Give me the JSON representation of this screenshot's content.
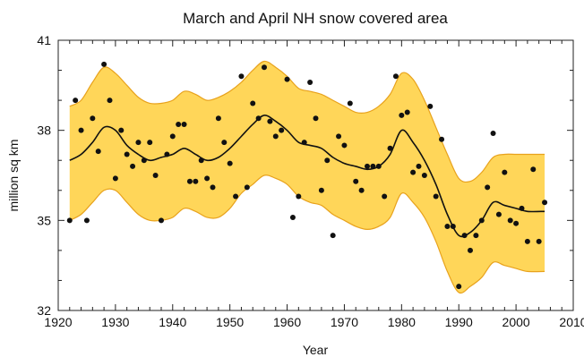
{
  "chart_data": {
    "type": "line",
    "title": "March and April NH snow covered area",
    "xlabel": "Year",
    "ylabel": "million sq km",
    "xlim": [
      1920,
      2010
    ],
    "ylim": [
      32,
      41
    ],
    "xticks": [
      1920,
      1930,
      1940,
      1950,
      1960,
      1970,
      1980,
      1990,
      2000,
      2010
    ],
    "yticks": [
      32,
      35,
      38,
      41
    ],
    "grid": false,
    "band_color": "#FFD659",
    "band_edge_color": "#E8A21C",
    "line_color": "#111111",
    "point_color": "#111111",
    "smooth_line": {
      "x": [
        1922,
        1924,
        1926,
        1928,
        1930,
        1932,
        1934,
        1936,
        1938,
        1940,
        1942,
        1944,
        1946,
        1948,
        1950,
        1952,
        1954,
        1956,
        1958,
        1960,
        1962,
        1964,
        1966,
        1968,
        1970,
        1972,
        1974,
        1976,
        1978,
        1980,
        1982,
        1984,
        1986,
        1988,
        1990,
        1992,
        1994,
        1996,
        1998,
        2000,
        2002,
        2005
      ],
      "y": [
        37.0,
        37.2,
        37.6,
        38.1,
        38.0,
        37.5,
        37.2,
        37.0,
        37.1,
        37.2,
        37.4,
        37.2,
        37.0,
        37.1,
        37.4,
        37.8,
        38.2,
        38.5,
        38.3,
        38.0,
        37.6,
        37.5,
        37.4,
        37.1,
        36.9,
        36.8,
        36.7,
        36.8,
        37.2,
        38.0,
        37.6,
        37.0,
        36.2,
        35.2,
        34.5,
        34.6,
        35.0,
        35.6,
        35.5,
        35.4,
        35.3,
        35.3
      ]
    },
    "band_upper": {
      "x": [
        1922,
        1924,
        1926,
        1928,
        1930,
        1932,
        1934,
        1936,
        1938,
        1940,
        1942,
        1944,
        1946,
        1948,
        1950,
        1952,
        1954,
        1956,
        1958,
        1960,
        1962,
        1964,
        1966,
        1968,
        1970,
        1972,
        1974,
        1976,
        1978,
        1980,
        1982,
        1984,
        1986,
        1988,
        1990,
        1992,
        1994,
        1996,
        1998,
        2000,
        2002,
        2005
      ],
      "y": [
        38.8,
        39.0,
        39.6,
        40.1,
        39.9,
        39.5,
        39.1,
        38.9,
        38.9,
        39.0,
        39.3,
        39.2,
        39.0,
        39.1,
        39.3,
        39.6,
        40.0,
        40.3,
        40.1,
        39.8,
        39.4,
        39.3,
        39.2,
        39.0,
        38.8,
        38.6,
        38.6,
        38.8,
        39.2,
        39.9,
        39.7,
        39.0,
        38.1,
        37.2,
        36.4,
        36.3,
        36.6,
        37.1,
        37.2,
        37.2,
        37.2,
        37.2
      ]
    },
    "band_lower": {
      "x": [
        1922,
        1924,
        1926,
        1928,
        1930,
        1932,
        1934,
        1936,
        1938,
        1940,
        1942,
        1944,
        1946,
        1948,
        1950,
        1952,
        1954,
        1956,
        1958,
        1960,
        1962,
        1964,
        1966,
        1968,
        1970,
        1972,
        1974,
        1976,
        1978,
        1980,
        1982,
        1984,
        1986,
        1988,
        1990,
        1992,
        1994,
        1996,
        1998,
        2000,
        2002,
        2005
      ],
      "y": [
        35.0,
        35.2,
        35.6,
        36.0,
        36.0,
        35.6,
        35.2,
        35.0,
        35.0,
        35.1,
        35.4,
        35.3,
        35.1,
        35.1,
        35.4,
        35.9,
        36.2,
        36.5,
        36.4,
        36.2,
        35.8,
        35.6,
        35.5,
        35.2,
        35.0,
        34.8,
        34.7,
        34.8,
        35.1,
        35.9,
        35.6,
        35.1,
        34.3,
        33.3,
        32.6,
        32.8,
        33.1,
        33.6,
        33.5,
        33.4,
        33.3,
        33.3
      ]
    },
    "points": {
      "x": [
        1922,
        1923,
        1924,
        1925,
        1926,
        1927,
        1928,
        1929,
        1930,
        1931,
        1932,
        1933,
        1934,
        1935,
        1936,
        1937,
        1938,
        1939,
        1940,
        1941,
        1942,
        1943,
        1944,
        1945,
        1946,
        1947,
        1948,
        1949,
        1950,
        1951,
        1952,
        1953,
        1954,
        1955,
        1956,
        1957,
        1958,
        1959,
        1960,
        1961,
        1962,
        1963,
        1964,
        1965,
        1966,
        1967,
        1968,
        1969,
        1970,
        1971,
        1972,
        1973,
        1974,
        1975,
        1976,
        1977,
        1978,
        1979,
        1980,
        1981,
        1982,
        1983,
        1984,
        1985,
        1986,
        1987,
        1988,
        1989,
        1990,
        1991,
        1992,
        1993,
        1994,
        1995,
        1996,
        1997,
        1998,
        1999,
        2000,
        2001,
        2002,
        2003,
        2004,
        2005
      ],
      "y": [
        35.0,
        39.0,
        38.0,
        35.0,
        38.4,
        37.3,
        40.2,
        39.0,
        36.4,
        38.0,
        37.2,
        36.8,
        37.6,
        37.0,
        37.6,
        36.5,
        35.0,
        37.2,
        37.8,
        38.2,
        38.2,
        36.3,
        36.3,
        37.0,
        36.4,
        36.1,
        38.4,
        37.6,
        36.9,
        35.8,
        39.8,
        36.1,
        38.9,
        38.4,
        40.1,
        38.3,
        37.8,
        38.0,
        39.7,
        35.1,
        35.8,
        37.6,
        39.6,
        38.4,
        36.0,
        37.0,
        34.5,
        37.8,
        37.5,
        38.9,
        36.3,
        36.0,
        36.8,
        36.8,
        36.8,
        35.8,
        37.4,
        39.8,
        38.5,
        38.6,
        36.6,
        36.8,
        36.5,
        38.8,
        35.8,
        37.7,
        34.8,
        34.8,
        32.8,
        34.5,
        34.0,
        34.5,
        35.0,
        36.1,
        37.9,
        35.2,
        36.6,
        35.0,
        34.9,
        35.4,
        34.3,
        36.7,
        34.3,
        35.6
      ]
    }
  }
}
